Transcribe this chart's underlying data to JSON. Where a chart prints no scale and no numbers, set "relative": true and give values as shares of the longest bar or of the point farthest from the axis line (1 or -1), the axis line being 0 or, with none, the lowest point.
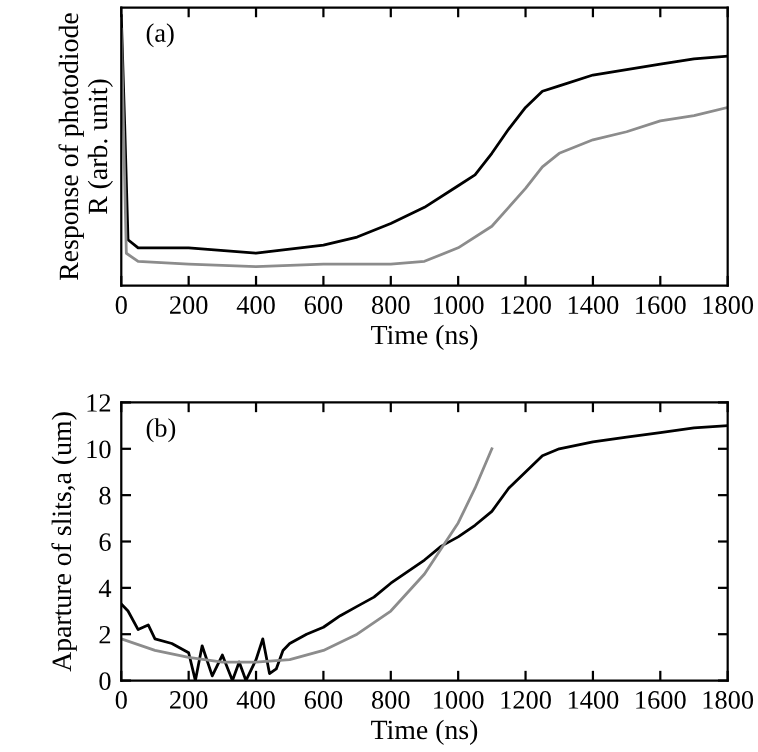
{
  "chart_data": [
    {
      "type": "line",
      "relative": true,
      "xlabel": "Time (ns)",
      "ylabel": "Response of photodiode\nR (arb. unit)",
      "annotations": [
        "(a)"
      ],
      "xlim": [
        0,
        1800
      ],
      "xticks": [
        0,
        200,
        400,
        600,
        800,
        1000,
        1200,
        1400,
        1600,
        1800
      ],
      "tick_labels": "x",
      "grid": false,
      "legend": false,
      "series": [
        {
          "color": "#000000",
          "x": [
            0,
            10,
            20,
            50,
            200,
            400,
            600,
            700,
            800,
            900,
            1000,
            1050,
            1100,
            1150,
            1200,
            1250,
            1300,
            1400,
            1500,
            1600,
            1700,
            1800
          ],
          "values": [
            1.0,
            0.6,
            0.17,
            0.14,
            0.14,
            0.12,
            0.15,
            0.18,
            0.23,
            0.29,
            0.37,
            0.41,
            0.49,
            0.58,
            0.66,
            0.72,
            0.74,
            0.78,
            0.8,
            0.82,
            0.84,
            0.85
          ]
        },
        {
          "color": "#8c8c8c",
          "x": [
            0,
            15,
            50,
            200,
            400,
            600,
            800,
            900,
            1000,
            1100,
            1150,
            1200,
            1250,
            1300,
            1400,
            1500,
            1600,
            1700,
            1800
          ],
          "values": [
            0.95,
            0.12,
            0.09,
            0.08,
            0.07,
            0.08,
            0.08,
            0.09,
            0.14,
            0.22,
            0.29,
            0.36,
            0.44,
            0.49,
            0.54,
            0.57,
            0.61,
            0.63,
            0.66
          ]
        }
      ]
    },
    {
      "type": "line",
      "xlabel": "Time (ns)",
      "ylabel": "Aparture of slits,a (um)",
      "annotations": [
        "(b)"
      ],
      "xlim": [
        0,
        1800
      ],
      "xticks": [
        0,
        200,
        400,
        600,
        800,
        1000,
        1200,
        1400,
        1600,
        1800
      ],
      "ylim": [
        0,
        12
      ],
      "yticks": [
        0,
        2,
        4,
        6,
        8,
        10,
        12
      ],
      "grid": false,
      "legend": false,
      "series": [
        {
          "color": "#000000",
          "x": [
            0,
            20,
            50,
            80,
            100,
            150,
            200,
            220,
            240,
            270,
            300,
            330,
            350,
            370,
            400,
            420,
            440,
            460,
            480,
            500,
            550,
            600,
            650,
            700,
            750,
            800,
            850,
            900,
            950,
            1000,
            1050,
            1100,
            1150,
            1200,
            1250,
            1300,
            1400,
            1500,
            1600,
            1700,
            1800
          ],
          "values": [
            3.3,
            3.0,
            2.2,
            2.4,
            1.8,
            1.6,
            1.2,
            0,
            1.5,
            0.2,
            1.1,
            0,
            0.8,
            0,
            0.9,
            1.8,
            0.3,
            0.5,
            1.3,
            1.6,
            2.0,
            2.3,
            2.8,
            3.2,
            3.6,
            4.2,
            4.7,
            5.2,
            5.8,
            6.2,
            6.7,
            7.3,
            8.3,
            9.0,
            9.7,
            10.0,
            10.3,
            10.5,
            10.7,
            10.9,
            11.0
          ]
        },
        {
          "color": "#8c8c8c",
          "x": [
            0,
            100,
            200,
            300,
            400,
            500,
            600,
            700,
            800,
            900,
            1000,
            1050,
            1100
          ],
          "values": [
            1.8,
            1.3,
            1.0,
            0.8,
            0.8,
            0.9,
            1.3,
            2.0,
            3.0,
            4.6,
            6.8,
            8.3,
            10.0
          ]
        }
      ]
    }
  ]
}
